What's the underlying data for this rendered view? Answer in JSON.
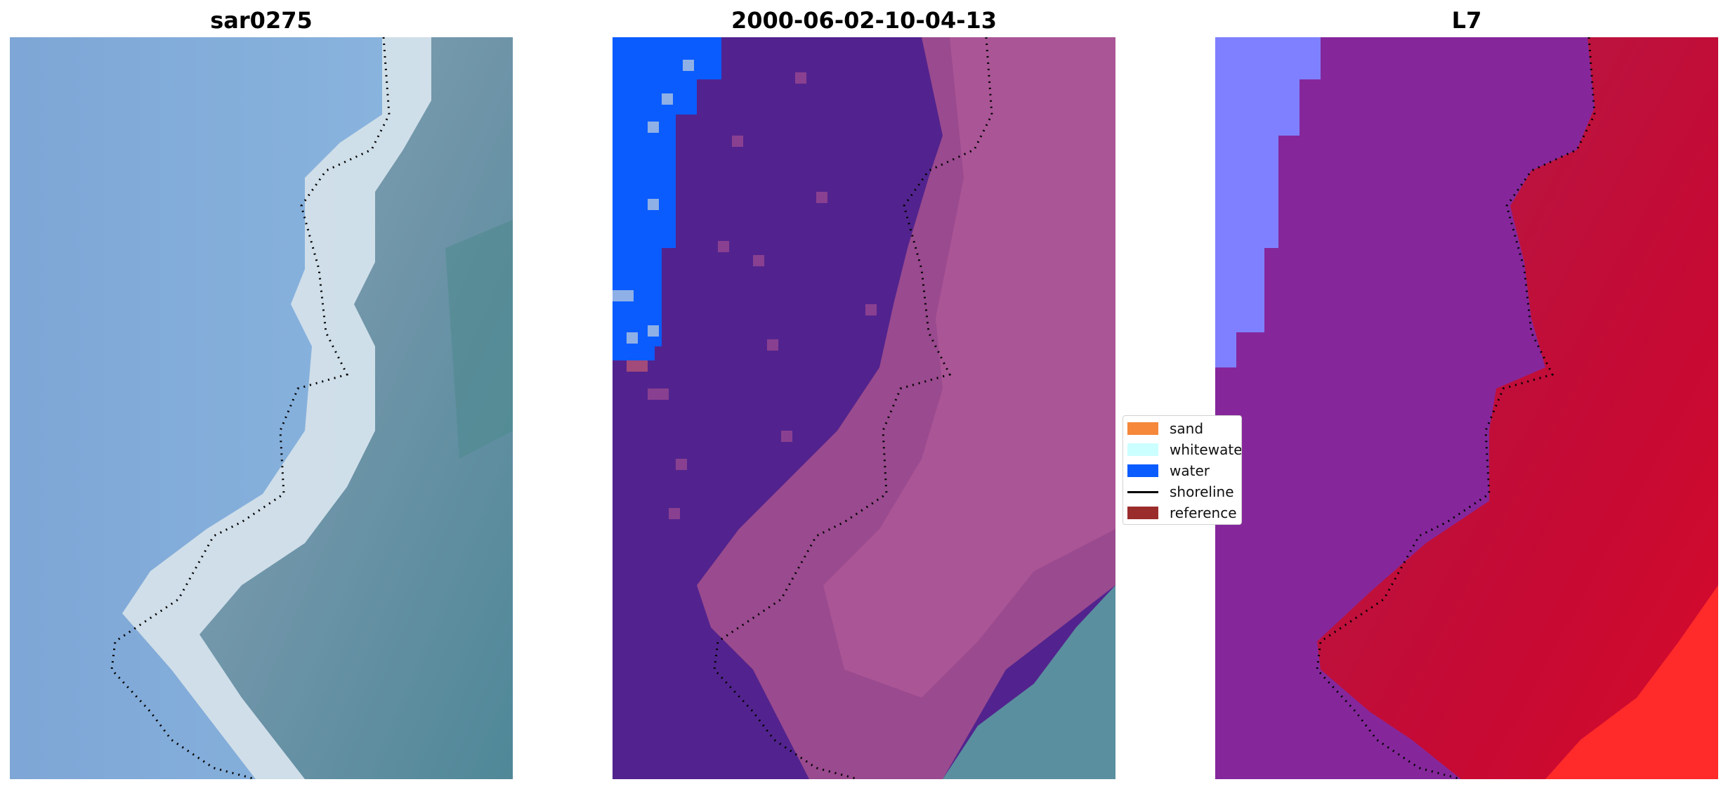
{
  "panels": [
    {
      "title": "sar0275"
    },
    {
      "title": "2000-06-02-10-04-13"
    },
    {
      "title": "L7"
    }
  ],
  "legend": {
    "items": [
      {
        "label": "sand",
        "color": "#f5883a",
        "kind": "patch"
      },
      {
        "label": "whitewater",
        "color": "#ccffff",
        "kind": "patch"
      },
      {
        "label": "water",
        "color": "#0a5cff",
        "kind": "patch"
      },
      {
        "label": "shoreline",
        "color": "#000000",
        "kind": "line"
      },
      {
        "label": "reference shoreline",
        "color": "#9b2c2c",
        "kind": "patch"
      }
    ]
  },
  "colors": {
    "ocean_rgb": "#7fa6d5",
    "land_rgb": "#5a8f9f",
    "water_class": "#0a5cff",
    "land_class": "#52238e",
    "land_overlay": "#b05a9a",
    "ndwi_water": "#7f80ff",
    "ndwi_land": "#c0103a"
  }
}
